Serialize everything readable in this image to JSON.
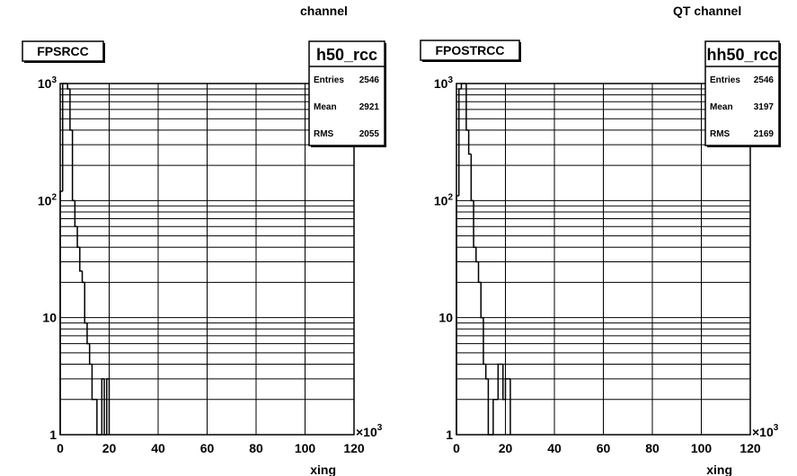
{
  "chart_data": [
    {
      "type": "histogram",
      "title": "channel",
      "hist_title": "FPSRCC",
      "stats": {
        "name": "h50_rcc",
        "rows": [
          {
            "label": "Entries",
            "value": "2546"
          },
          {
            "label": "Mean",
            "value": "2921"
          },
          {
            "label": "RMS",
            "value": "2055"
          }
        ]
      },
      "xlabel": "xing",
      "x_exponent": "3",
      "x_range": [
        0,
        120
      ],
      "x_ticks": [
        "0",
        "20",
        "40",
        "60",
        "80",
        "100",
        "120"
      ],
      "y_scale": "log",
      "y_range": [
        1,
        1000
      ],
      "y_ticks": [
        {
          "base": "1",
          "exp": ""
        },
        {
          "base": "10",
          "exp": ""
        },
        {
          "base": "10",
          "exp": "2"
        },
        {
          "base": "10",
          "exp": "3"
        }
      ],
      "grid": true,
      "bins": {
        "x": [
          0.5,
          1.5,
          2.5,
          3.5,
          4.5,
          5.5,
          6.5,
          7.5,
          8.5,
          9.5,
          10.5,
          11.5,
          12.5,
          13.5,
          14.5,
          15.5,
          16.5,
          17.5,
          18.5,
          19.5
        ],
        "y": [
          120,
          1000,
          1000,
          900,
          400,
          100,
          60,
          40,
          25,
          20,
          9,
          6,
          4,
          2,
          2,
          0,
          0,
          3,
          0,
          3
        ]
      }
    },
    {
      "type": "histogram",
      "title": "QT channel",
      "hist_title": "FPOSTRCC",
      "stats": {
        "name": "hh50_rcc",
        "rows": [
          {
            "label": "Entries",
            "value": "2546"
          },
          {
            "label": "Mean",
            "value": "3197"
          },
          {
            "label": "RMS",
            "value": "2169"
          }
        ]
      },
      "xlabel": "xing",
      "x_exponent": "3",
      "x_range": [
        0,
        120
      ],
      "x_ticks": [
        "0",
        "20",
        "40",
        "60",
        "80",
        "100",
        "120"
      ],
      "y_scale": "log",
      "y_range": [
        1,
        1000
      ],
      "y_ticks": [
        {
          "base": "1",
          "exp": ""
        },
        {
          "base": "10",
          "exp": ""
        },
        {
          "base": "10",
          "exp": "2"
        },
        {
          "base": "10",
          "exp": "3"
        }
      ],
      "grid": true,
      "bins": {
        "x": [
          0.5,
          1.5,
          2.5,
          3.5,
          4.5,
          5.5,
          6.5,
          7.5,
          8.5,
          9.5,
          10.5,
          11.5,
          12.5,
          13.5,
          14.5,
          15.5,
          16.5,
          17.5,
          18.5,
          19.5,
          20.5,
          21.5
        ],
        "y": [
          110,
          900,
          1000,
          1000,
          400,
          250,
          100,
          40,
          30,
          20,
          10,
          4,
          3,
          1,
          1,
          2,
          2,
          4,
          4,
          2,
          3,
          3
        ]
      }
    }
  ]
}
